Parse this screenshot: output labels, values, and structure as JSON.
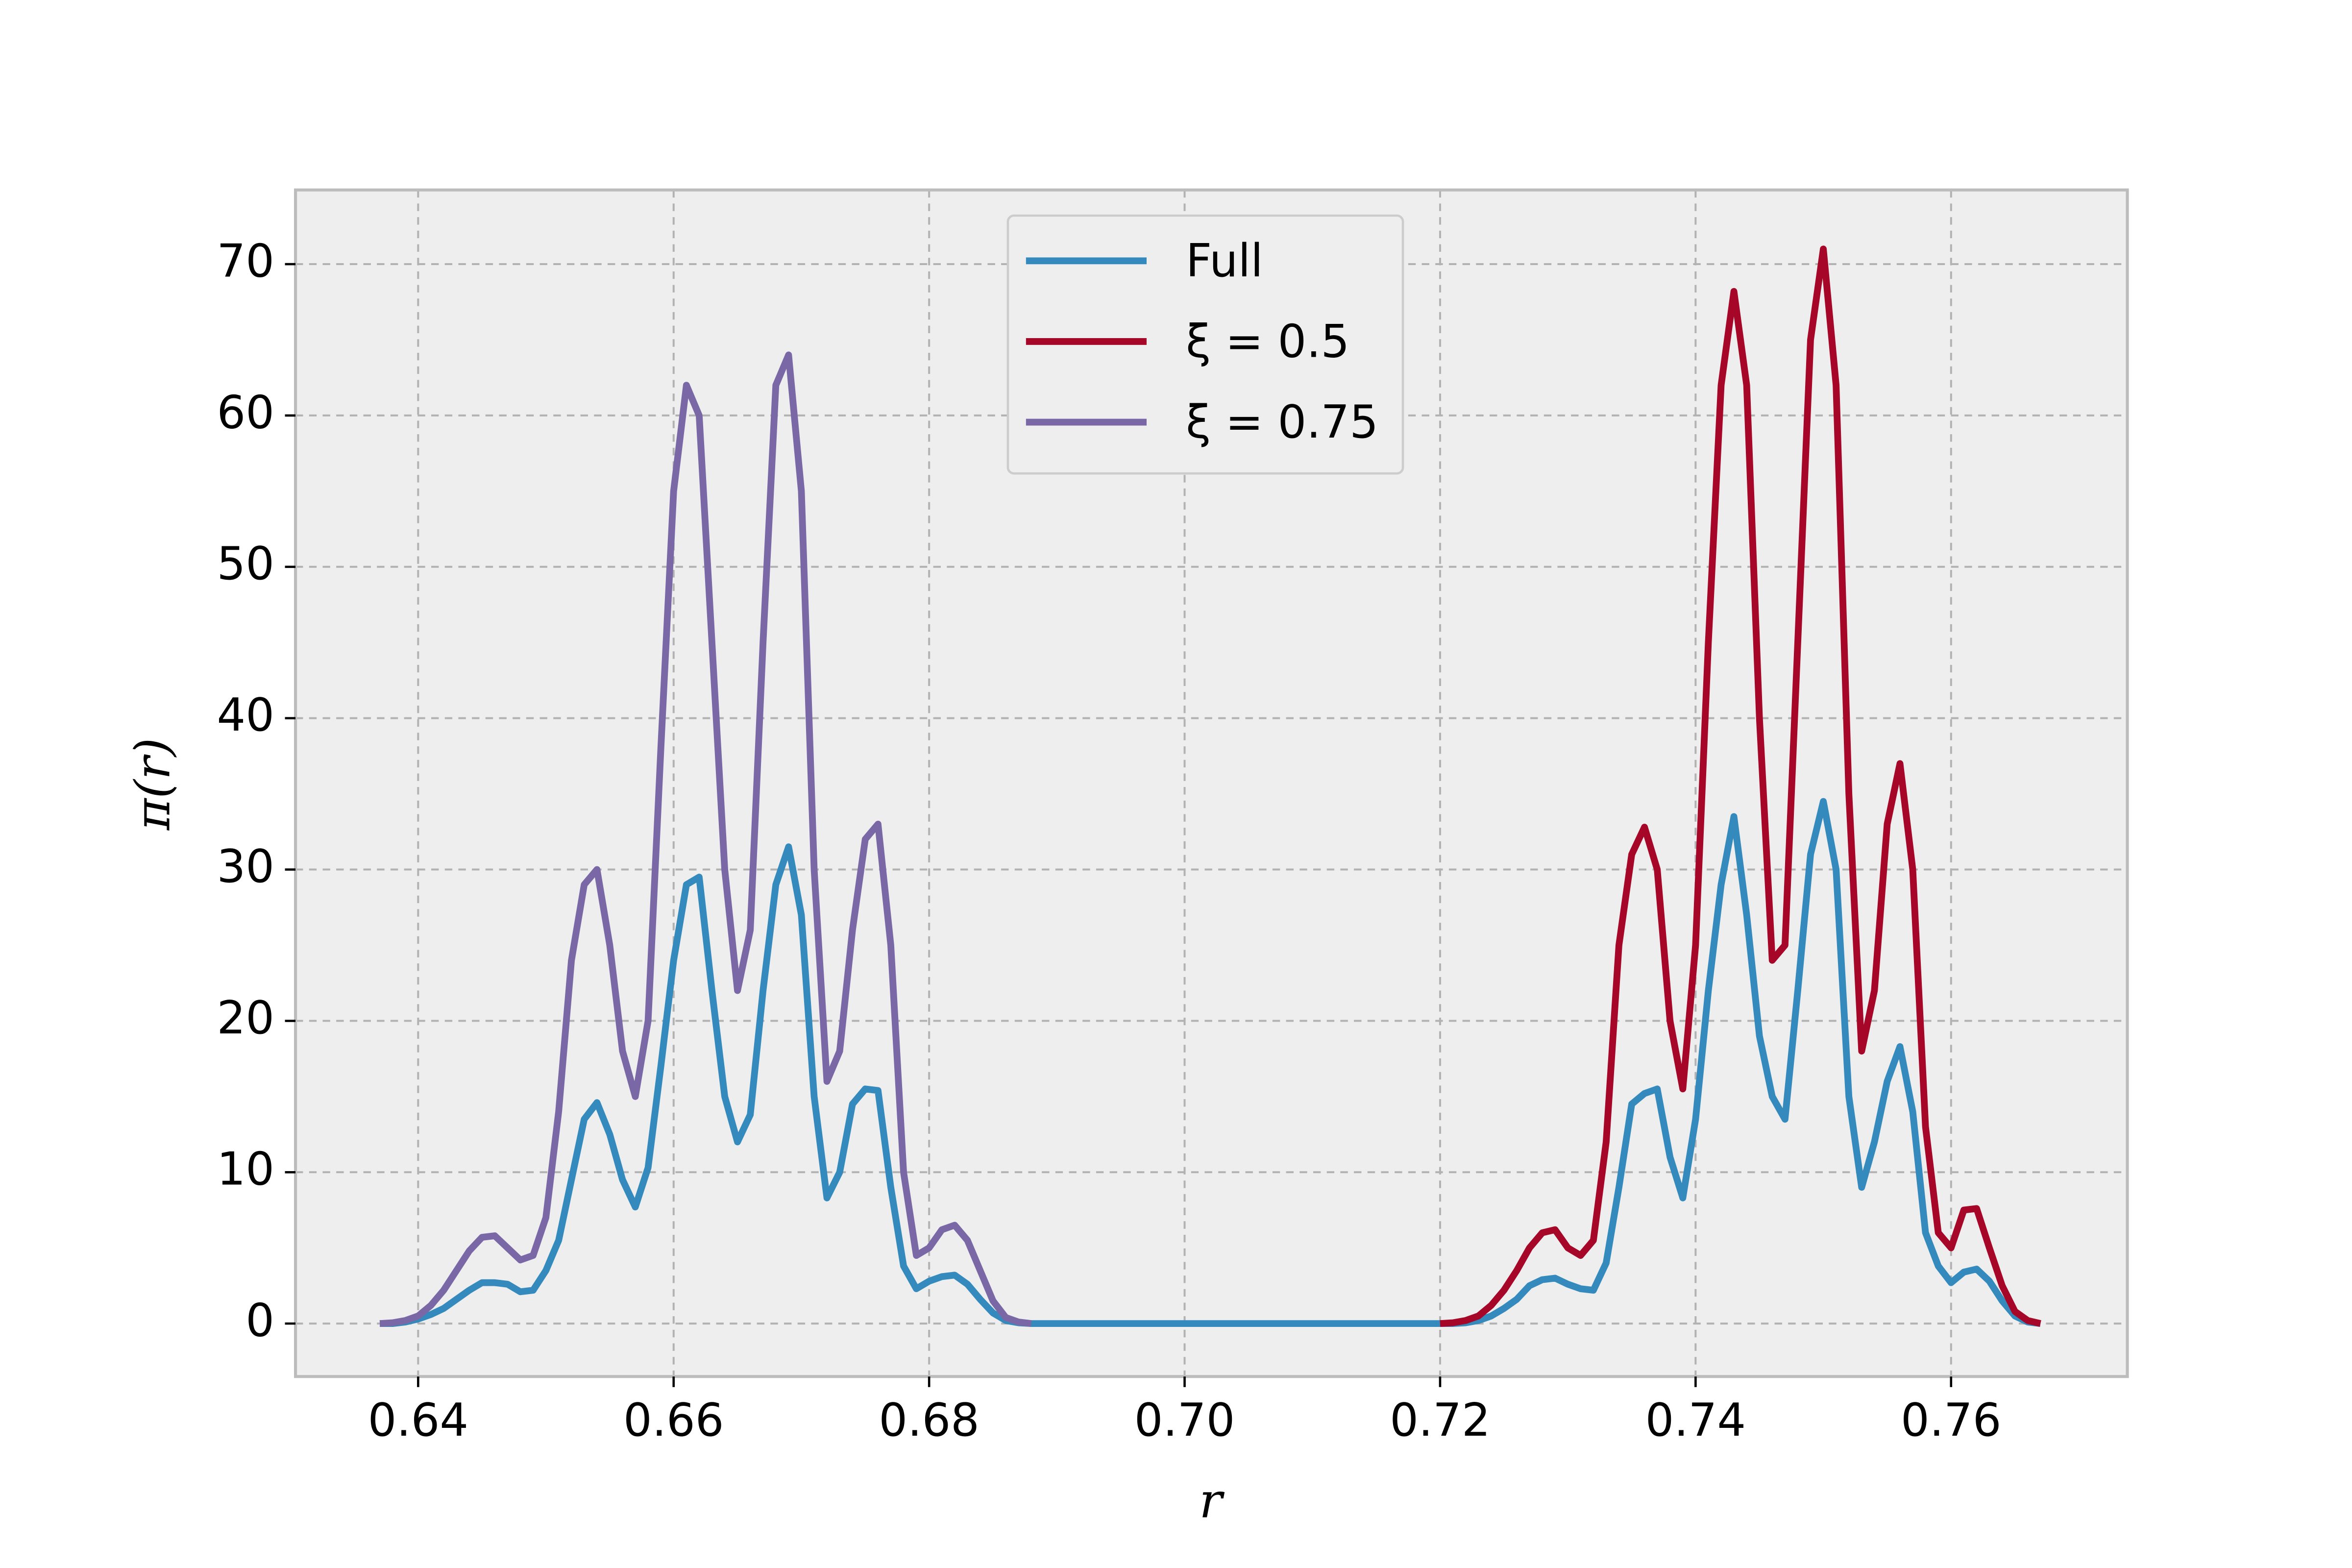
{
  "chart_data": {
    "type": "line",
    "xlabel": "r",
    "ylabel": "π(r)",
    "x": [
      0.637,
      0.638,
      0.639,
      0.64,
      0.641,
      0.642,
      0.643,
      0.644,
      0.645,
      0.646,
      0.647,
      0.648,
      0.649,
      0.65,
      0.651,
      0.652,
      0.653,
      0.654,
      0.655,
      0.656,
      0.657,
      0.658,
      0.659,
      0.66,
      0.661,
      0.662,
      0.663,
      0.664,
      0.665,
      0.666,
      0.667,
      0.668,
      0.669,
      0.67,
      0.671,
      0.672,
      0.673,
      0.674,
      0.675,
      0.676,
      0.677,
      0.678,
      0.679,
      0.68,
      0.681,
      0.682,
      0.683,
      0.684,
      0.685,
      0.686,
      0.687,
      0.688,
      0.689,
      0.69,
      0.691,
      0.692,
      0.693,
      0.694,
      0.695,
      0.696,
      0.697,
      0.698,
      0.699,
      0.7,
      0.701,
      0.702,
      0.703,
      0.704,
      0.705,
      0.706,
      0.707,
      0.708,
      0.709,
      0.71,
      0.711,
      0.712,
      0.713,
      0.714,
      0.715,
      0.716,
      0.717,
      0.718,
      0.719,
      0.72,
      0.721,
      0.722,
      0.723,
      0.724,
      0.725,
      0.726,
      0.727,
      0.728,
      0.729,
      0.73,
      0.731,
      0.732,
      0.733,
      0.734,
      0.735,
      0.736,
      0.737,
      0.738,
      0.739,
      0.74,
      0.741,
      0.742,
      0.743,
      0.744,
      0.745,
      0.746,
      0.747,
      0.748,
      0.749,
      0.75,
      0.751,
      0.752,
      0.753,
      0.754,
      0.755,
      0.756,
      0.757,
      0.758,
      0.759,
      0.76,
      0.761,
      0.762,
      0.763,
      0.764,
      0.765,
      0.766,
      0.767
    ],
    "series": [
      {
        "name": "Full",
        "color": "#348ABD",
        "values": [
          0,
          0,
          0.1,
          0.3,
          0.6,
          1.0,
          1.6,
          2.2,
          2.7,
          2.7,
          2.6,
          2.1,
          2.2,
          3.5,
          5.5,
          9.5,
          13.5,
          14.6,
          12.5,
          9.5,
          7.7,
          10.3,
          17,
          24,
          29,
          29.5,
          22,
          15,
          12,
          13.8,
          22,
          29,
          31.5,
          27,
          15,
          8.3,
          10,
          14.5,
          15.5,
          15.4,
          9,
          3.8,
          2.3,
          2.8,
          3.1,
          3.2,
          2.6,
          1.6,
          0.7,
          0.2,
          0.05,
          0,
          0,
          0,
          0,
          0,
          0,
          0,
          0,
          0,
          0,
          0,
          0,
          0,
          0,
          0,
          0,
          0,
          0,
          0,
          0,
          0,
          0,
          0,
          0,
          0,
          0,
          0,
          0,
          0,
          0,
          0,
          0,
          0,
          0,
          0.05,
          0.2,
          0.5,
          1.0,
          1.6,
          2.5,
          2.9,
          3.0,
          2.6,
          2.3,
          2.2,
          4.0,
          9,
          14.5,
          15.2,
          15.5,
          11,
          8.3,
          13.5,
          22,
          29,
          33.5,
          27,
          19,
          15,
          13.5,
          22,
          31,
          34.5,
          30,
          15,
          9,
          12,
          16,
          18.3,
          14,
          6,
          3.8,
          2.7,
          3.4,
          3.6,
          2.8,
          1.5,
          0.5,
          0.1,
          0
        ]
      },
      {
        "name": "ξ = 0.5",
        "color": "#A60628",
        "values": [
          null,
          null,
          null,
          null,
          null,
          null,
          null,
          null,
          null,
          null,
          null,
          null,
          null,
          null,
          null,
          null,
          null,
          null,
          null,
          null,
          null,
          null,
          null,
          null,
          null,
          null,
          null,
          null,
          null,
          null,
          null,
          null,
          null,
          null,
          null,
          null,
          null,
          null,
          null,
          null,
          null,
          null,
          null,
          null,
          null,
          null,
          null,
          null,
          null,
          null,
          null,
          null,
          null,
          null,
          null,
          null,
          null,
          null,
          null,
          null,
          null,
          null,
          null,
          null,
          null,
          null,
          null,
          null,
          null,
          null,
          null,
          null,
          null,
          null,
          null,
          null,
          null,
          null,
          null,
          null,
          null,
          null,
          null,
          0,
          0.05,
          0.2,
          0.5,
          1.2,
          2.2,
          3.5,
          5,
          6,
          6.2,
          5,
          4.5,
          5.5,
          12,
          25,
          31,
          32.8,
          30,
          20,
          15.5,
          25,
          45,
          62,
          68.2,
          62,
          40,
          24,
          25,
          45,
          65,
          71,
          62,
          35,
          18,
          22,
          33,
          37,
          30,
          13,
          6,
          5,
          7.5,
          7.6,
          5,
          2.5,
          0.8,
          0.2,
          0
        ]
      },
      {
        "name": "ξ = 0.75",
        "color": "#7A68A6",
        "values": [
          0,
          0.05,
          0.2,
          0.5,
          1.2,
          2.2,
          3.5,
          4.8,
          5.7,
          5.8,
          5,
          4.2,
          4.5,
          7,
          14,
          24,
          29,
          30,
          25,
          18,
          15,
          20,
          38,
          55,
          62,
          60,
          45,
          30,
          22,
          26,
          45,
          62,
          64,
          55,
          30,
          16,
          18,
          26,
          32,
          33,
          25,
          10,
          4.5,
          5,
          6.2,
          6.5,
          5.5,
          3.5,
          1.5,
          0.4,
          0.1,
          0,
          null,
          null,
          null,
          null,
          null,
          null,
          null,
          null,
          null,
          null,
          null,
          null,
          null,
          null,
          null,
          null,
          null,
          null,
          null,
          null,
          null,
          null,
          null,
          null,
          null,
          null,
          null,
          null,
          null,
          null,
          null,
          null,
          null,
          null,
          null,
          null,
          null,
          null,
          null,
          null,
          null,
          null,
          null,
          null,
          null,
          null,
          null,
          null,
          null,
          null,
          null,
          null,
          null,
          null,
          null,
          null,
          null,
          null,
          null,
          null,
          null,
          null,
          null,
          null,
          null,
          null,
          null,
          null,
          null,
          null,
          null,
          null,
          null,
          null,
          null,
          null,
          null,
          null,
          null
        ]
      }
    ],
    "xlim": [
      0.6304,
      0.7738
    ],
    "ylim": [
      -3.5,
      74.9
    ],
    "xticks": [
      0.64,
      0.66,
      0.68,
      {
        "value": 0.7,
        "label": "0.70"
      },
      0.72,
      0.74,
      0.76
    ],
    "yticks": [
      0,
      10,
      20,
      30,
      40,
      50,
      60,
      70
    ],
    "grid": true,
    "legend": "upper center"
  }
}
